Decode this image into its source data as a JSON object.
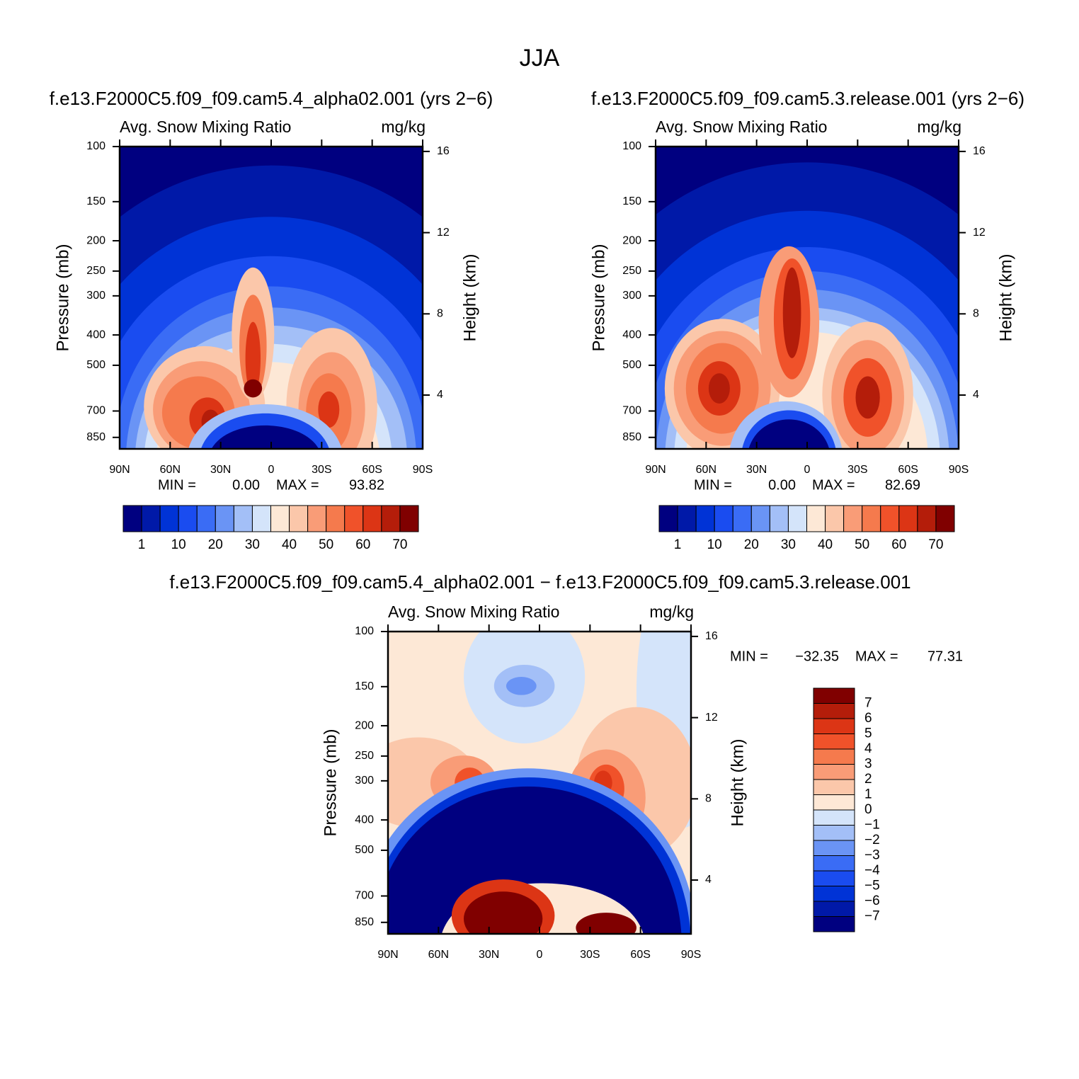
{
  "title": "JJA",
  "chart_data": [
    {
      "type": "contour",
      "title": "f.e13.F2000C5.f09_f09.cam5.4_alpha02.001 (yrs 2−6)",
      "subtitle_left": "Avg. Snow Mixing Ratio",
      "subtitle_right": "mg/kg",
      "ylabel": "Pressure (mb)",
      "y2label": "Height (km)",
      "xlim": [
        90,
        -90
      ],
      "xticks": [
        {
          "value": 90,
          "label": "90N"
        },
        {
          "value": 60,
          "label": "60N"
        },
        {
          "value": 30,
          "label": "30N"
        },
        0,
        {
          "value": -30,
          "label": "30S"
        },
        {
          "value": -60,
          "label": "60S"
        },
        {
          "value": -90,
          "label": "90S"
        }
      ],
      "ylim": [
        100,
        925
      ],
      "log_y": true,
      "yticks": [
        100,
        150,
        200,
        250,
        300,
        400,
        500,
        700,
        850
      ],
      "y2lim": [
        1.35,
        16.24
      ],
      "y2ticks": [
        4,
        8,
        12,
        16
      ],
      "stats": {
        "labels": [
          "MIN =",
          "MAX ="
        ],
        "values": [
          0,
          93.82
        ],
        "value_labels": [
          "0.00",
          "93.82"
        ]
      },
      "colorbar": {
        "orientation": "horizontal",
        "colors": [
          "#000080",
          "#0019a8",
          "#0033d6",
          "#1a4cf0",
          "#3a6cf5",
          "#6a94f5",
          "#a3bff7",
          "#d4e4fa",
          "#fde8d6",
          "#fbc7aa",
          "#f99c77",
          "#f57a4d",
          "#f0522a",
          "#dc3515",
          "#b41d0a",
          "#800000"
        ],
        "labels": [
          1,
          10,
          20,
          30,
          40,
          50,
          60,
          70
        ]
      }
    },
    {
      "type": "contour",
      "title": "f.e13.F2000C5.f09_f09.cam5.3.release.001 (yrs 2−6)",
      "subtitle_left": "Avg. Snow Mixing Ratio",
      "subtitle_right": "mg/kg",
      "ylabel": "Pressure (mb)",
      "y2label": "Height (km)",
      "xlim": [
        90,
        -90
      ],
      "xticks": [
        {
          "value": 90,
          "label": "90N"
        },
        {
          "value": 60,
          "label": "60N"
        },
        {
          "value": 30,
          "label": "30N"
        },
        0,
        {
          "value": -30,
          "label": "30S"
        },
        {
          "value": -60,
          "label": "60S"
        },
        {
          "value": -90,
          "label": "90S"
        }
      ],
      "ylim": [
        100,
        925
      ],
      "log_y": true,
      "yticks": [
        100,
        150,
        200,
        250,
        300,
        400,
        500,
        700,
        850
      ],
      "y2lim": [
        1.35,
        16.24
      ],
      "y2ticks": [
        4,
        8,
        12,
        16
      ],
      "stats": {
        "labels": [
          "MIN =",
          "MAX ="
        ],
        "values": [
          0,
          82.69
        ],
        "value_labels": [
          "0.00",
          "82.69"
        ]
      },
      "colorbar": {
        "orientation": "horizontal",
        "colors": [
          "#000080",
          "#0019a8",
          "#0033d6",
          "#1a4cf0",
          "#3a6cf5",
          "#6a94f5",
          "#a3bff7",
          "#d4e4fa",
          "#fde8d6",
          "#fbc7aa",
          "#f99c77",
          "#f57a4d",
          "#f0522a",
          "#dc3515",
          "#b41d0a",
          "#800000"
        ],
        "labels": [
          1,
          10,
          20,
          30,
          40,
          50,
          60,
          70
        ]
      }
    },
    {
      "type": "contour",
      "title": "f.e13.F2000C5.f09_f09.cam5.4_alpha02.001 − f.e13.F2000C5.f09_f09.cam5.3.release.001",
      "subtitle_left": "Avg. Snow Mixing Ratio",
      "subtitle_right": "mg/kg",
      "ylabel": "Pressure (mb)",
      "y2label": "Height (km)",
      "xlim": [
        90,
        -90
      ],
      "xticks": [
        {
          "value": 90,
          "label": "90N"
        },
        {
          "value": 60,
          "label": "60N"
        },
        {
          "value": 30,
          "label": "30N"
        },
        0,
        {
          "value": -30,
          "label": "30S"
        },
        {
          "value": -60,
          "label": "60S"
        },
        {
          "value": -90,
          "label": "90S"
        }
      ],
      "ylim": [
        100,
        925
      ],
      "log_y": true,
      "yticks": [
        100,
        150,
        200,
        250,
        300,
        400,
        500,
        700,
        850
      ],
      "y2lim": [
        1.35,
        16.24
      ],
      "y2ticks": [
        4,
        8,
        12,
        16
      ],
      "stats": {
        "labels": [
          "MIN =",
          "MAX ="
        ],
        "values": [
          -32.35,
          77.31
        ],
        "value_labels": [
          "−32.35",
          "77.31"
        ]
      },
      "colorbar": {
        "orientation": "vertical",
        "colors": [
          "#000080",
          "#0019a8",
          "#0033d6",
          "#1a4cf0",
          "#3a6cf5",
          "#6a94f5",
          "#a3bff7",
          "#d4e4fa",
          "#fde8d6",
          "#fbc7aa",
          "#f99c77",
          "#f57a4d",
          "#f0522a",
          "#dc3515",
          "#b41d0a",
          "#800000"
        ],
        "labels": [
          7,
          6,
          5,
          4,
          3,
          2,
          1,
          0,
          {
            "value": -1,
            "label": "−1"
          },
          {
            "value": -2,
            "label": "−2"
          },
          {
            "value": -3,
            "label": "−3"
          },
          {
            "value": -4,
            "label": "−4"
          },
          {
            "value": -5,
            "label": "−5"
          },
          {
            "value": -6,
            "label": "−6"
          },
          {
            "value": -7,
            "label": "−7"
          }
        ]
      }
    }
  ]
}
